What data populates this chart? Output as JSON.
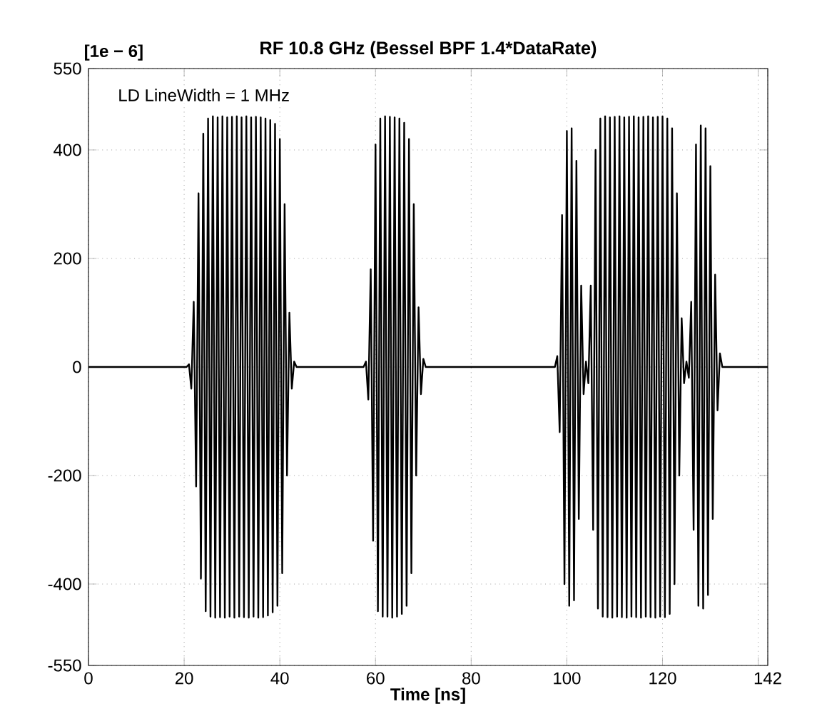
{
  "chart_data": {
    "type": "line",
    "title": "RF 10.8 GHz (Bessel BPF 1.4*DataRate)",
    "xlabel": "Time [ns]",
    "annotations": [
      "[1e − 6]",
      "LD LineWidth = 1 MHz"
    ],
    "xlim": [
      0,
      142
    ],
    "xticks": [
      0,
      20,
      40,
      60,
      80,
      100,
      120,
      {
        "value": 140,
        "label": null
      },
      142
    ],
    "ylim": [
      -550,
      550
    ],
    "yticks": [
      -550,
      -400,
      -200,
      0,
      200,
      400,
      550
    ],
    "grid": true,
    "marker": "none",
    "line_style": "solid",
    "series": [
      {
        "color": "#000000",
        "x": [
          0,
          20.5,
          21,
          21.5,
          22,
          22.5,
          23,
          23.5,
          24,
          24.5,
          25,
          25.5,
          26,
          26.5,
          27,
          27.5,
          28,
          28.5,
          29,
          29.5,
          30,
          30.5,
          31,
          31.5,
          32,
          32.5,
          33,
          33.5,
          34,
          34.5,
          35,
          35.5,
          36,
          36.5,
          37,
          37.5,
          38,
          38.5,
          39,
          39.5,
          40,
          40.5,
          41,
          41.5,
          42,
          42.5,
          43,
          43.5,
          57.5,
          58,
          58.5,
          59,
          59.5,
          60,
          60.5,
          61,
          61.5,
          62,
          62.5,
          63,
          63.5,
          64,
          64.5,
          65,
          65.5,
          66,
          66.5,
          67,
          67.5,
          68,
          68.5,
          69,
          69.5,
          70,
          70.5,
          97.5,
          98,
          98.5,
          99,
          99.5,
          100,
          100.5,
          101,
          101.5,
          102,
          102.5,
          103,
          103.5,
          104,
          104.5,
          105,
          105.5,
          106,
          106.5,
          107,
          107.5,
          108,
          108.5,
          109,
          109.5,
          110,
          110.5,
          111,
          111.5,
          112,
          112.5,
          113,
          113.5,
          114,
          114.5,
          115,
          115.5,
          116,
          116.5,
          117,
          117.5,
          118,
          118.5,
          119,
          119.5,
          120,
          120.5,
          121,
          121.5,
          122,
          122.5,
          123,
          123.5,
          124,
          124.5,
          125,
          125.5,
          126,
          126.5,
          127,
          127.5,
          128,
          128.5,
          129,
          129.5,
          130,
          130.5,
          131,
          131.5,
          132,
          132.5,
          142
        ],
        "values": [
          0,
          0,
          5,
          -40,
          120,
          -220,
          320,
          -390,
          430,
          -450,
          458,
          -460,
          462,
          -462,
          460,
          -461,
          462,
          -462,
          460,
          -460,
          461,
          -462,
          462,
          -460,
          460,
          -461,
          462,
          -462,
          460,
          -460,
          461,
          -462,
          460,
          -461,
          458,
          -458,
          455,
          -452,
          448,
          -440,
          420,
          -380,
          300,
          -200,
          100,
          -40,
          10,
          0,
          0,
          10,
          -60,
          180,
          -320,
          410,
          -450,
          458,
          -460,
          462,
          -460,
          461,
          -462,
          460,
          -460,
          458,
          -455,
          450,
          -440,
          420,
          -380,
          300,
          -200,
          110,
          -50,
          15,
          0,
          0,
          20,
          -120,
          280,
          -400,
          435,
          -440,
          440,
          -430,
          380,
          -280,
          150,
          -50,
          10,
          -30,
          150,
          -300,
          400,
          -445,
          458,
          -460,
          462,
          -461,
          460,
          -462,
          461,
          -460,
          462,
          -461,
          460,
          -462,
          461,
          -460,
          462,
          -461,
          460,
          -462,
          461,
          -460,
          462,
          -461,
          460,
          -462,
          461,
          -460,
          462,
          -461,
          458,
          -455,
          440,
          -400,
          320,
          -200,
          90,
          -30,
          10,
          -20,
          120,
          -300,
          410,
          -440,
          445,
          -445,
          440,
          -420,
          370,
          -280,
          170,
          -80,
          25,
          0,
          0
        ]
      }
    ]
  }
}
